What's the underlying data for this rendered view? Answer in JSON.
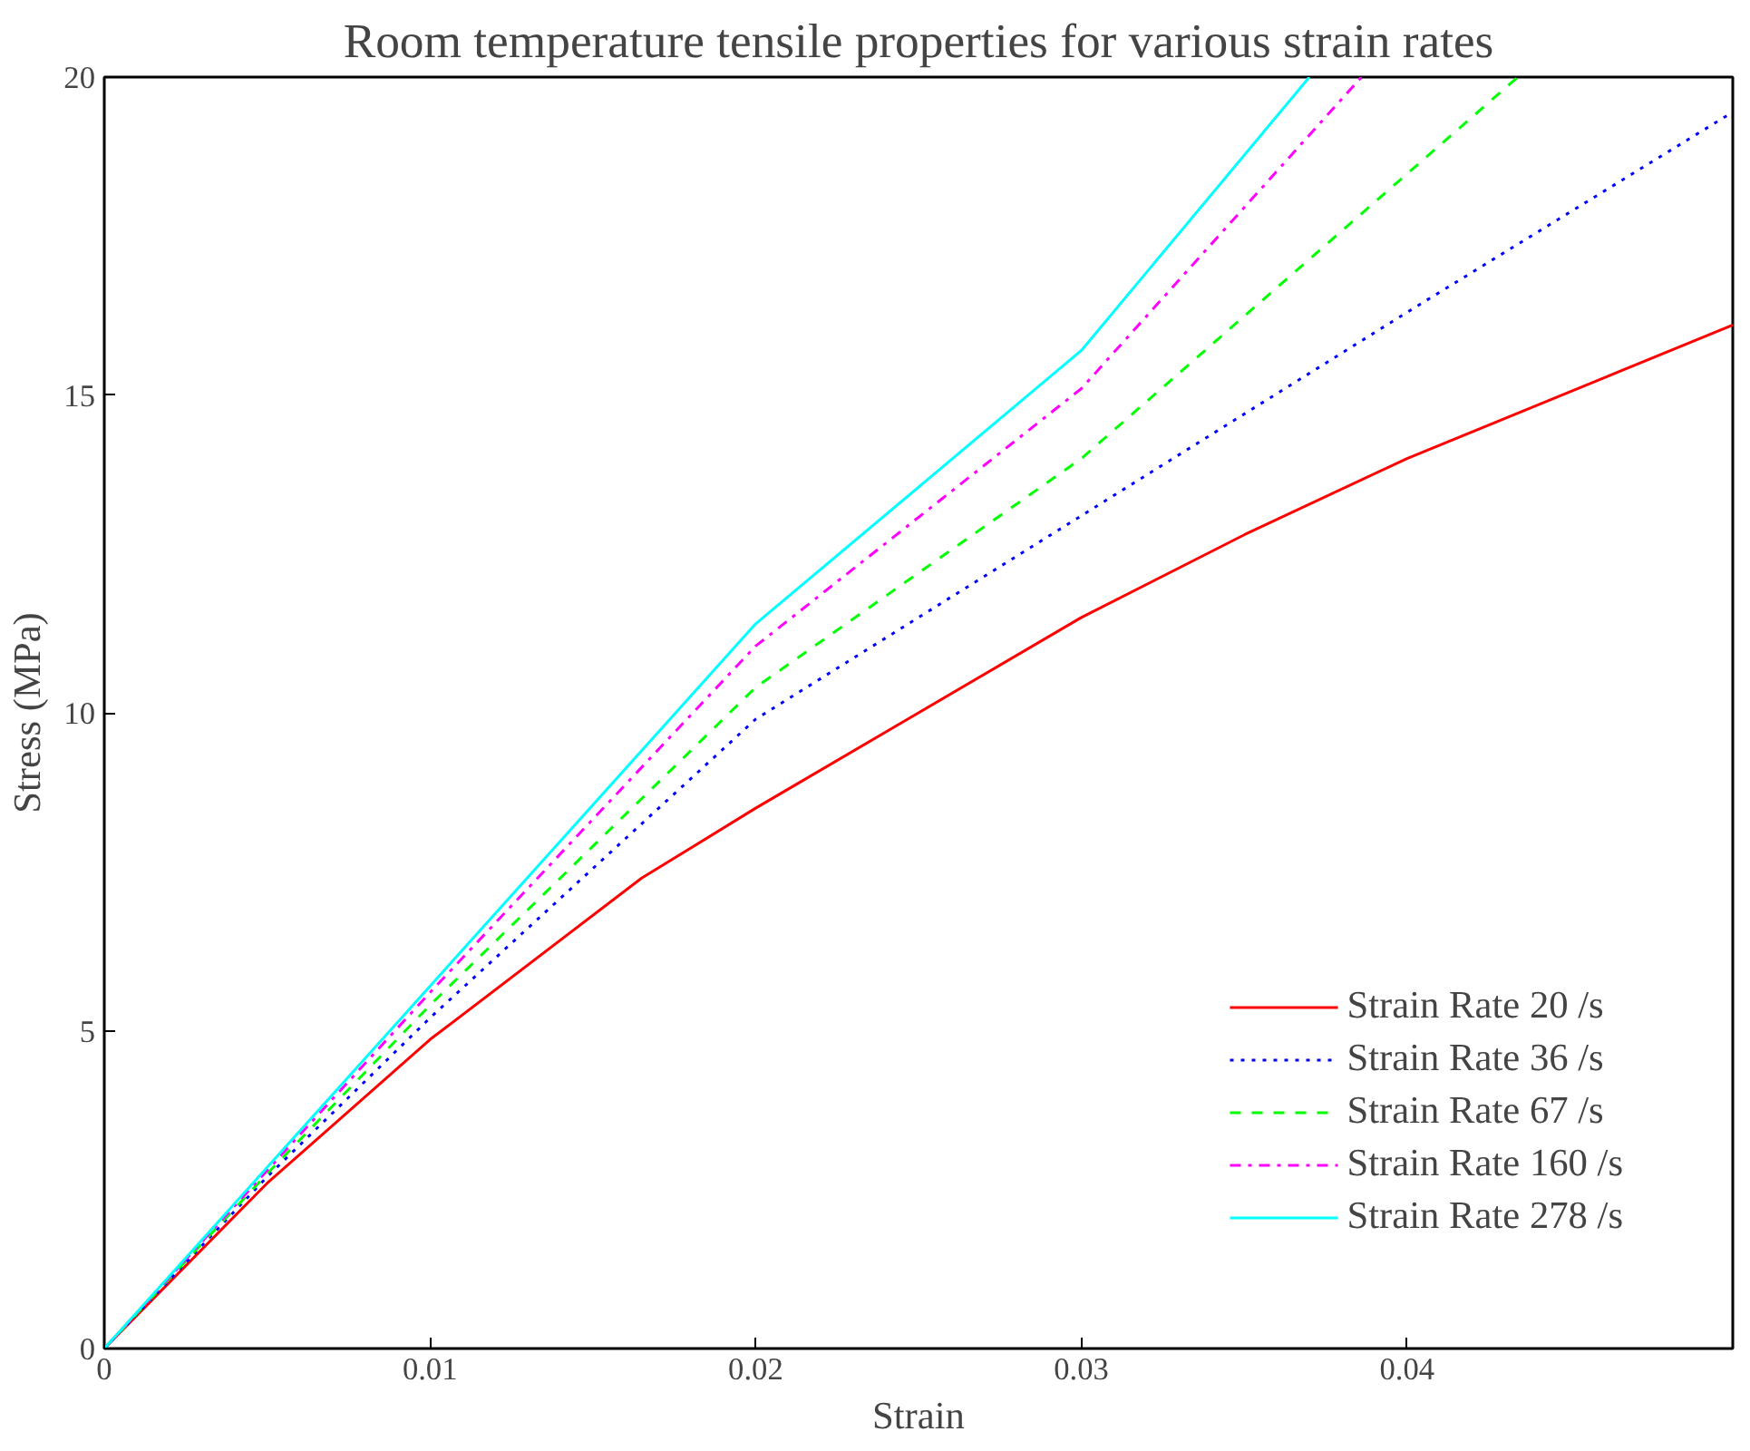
{
  "chart_data": {
    "type": "line",
    "title": "Room temperature tensile properties for various strain rates",
    "xlabel": "Strain",
    "ylabel": "Stress (MPa)",
    "xlim": [
      0,
      0.05
    ],
    "ylim": [
      0,
      20
    ],
    "xticks": [
      0,
      0.01,
      0.02,
      0.03,
      0.04
    ],
    "yticks": [
      0,
      5,
      10,
      15,
      20
    ],
    "grid": false,
    "legend": "bottom right",
    "series": [
      {
        "name": "Strain Rate 20 /s",
        "color": "#ff0000",
        "line_style": "solid",
        "x": [
          0,
          0.005,
          0.01,
          0.0165,
          0.02,
          0.025,
          0.03,
          0.035,
          0.04,
          0.05
        ],
        "values": [
          0,
          2.6,
          4.86,
          7.4,
          8.5,
          10.0,
          11.5,
          12.8,
          14.0,
          16.1
        ]
      },
      {
        "name": "Strain Rate 36 /s",
        "color": "#0000ff",
        "line_style": "dotted",
        "x": [
          0,
          0.005,
          0.01,
          0.02,
          0.03,
          0.04,
          0.05
        ],
        "values": [
          0,
          2.7,
          5.2,
          9.9,
          13.1,
          16.3,
          19.45
        ]
      },
      {
        "name": "Strain Rate 67 /s",
        "color": "#00ff00",
        "line_style": "dashed",
        "x": [
          0,
          0.005,
          0.01,
          0.02,
          0.03,
          0.0434
        ],
        "values": [
          0,
          2.75,
          5.4,
          10.4,
          14.0,
          20
        ]
      },
      {
        "name": "Strain Rate 160 /s",
        "color": "#ff00ff",
        "line_style": "dashdot",
        "x": [
          0,
          0.005,
          0.01,
          0.02,
          0.03,
          0.0386
        ],
        "values": [
          0,
          2.8,
          5.6,
          11.05,
          15.1,
          20
        ]
      },
      {
        "name": "Strain Rate 278 /s",
        "color": "#00ffff",
        "line_style": "solid",
        "x": [
          0,
          0.005,
          0.01,
          0.02,
          0.03,
          0.037
        ],
        "values": [
          0,
          2.85,
          5.7,
          11.4,
          15.7,
          20
        ]
      }
    ]
  }
}
